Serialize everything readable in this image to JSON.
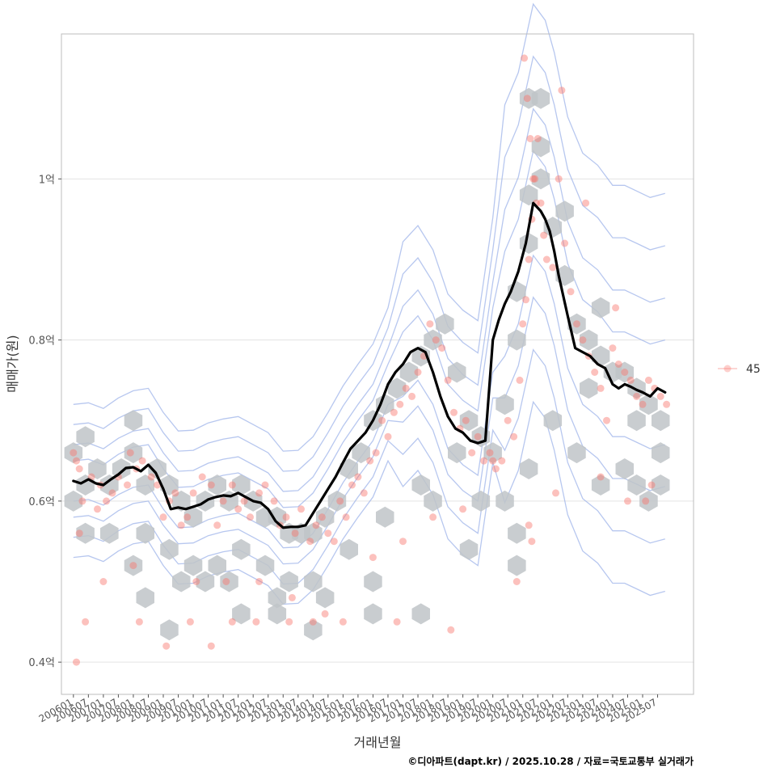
{
  "chart_data": {
    "type": "scatter",
    "xlabel": "거래년월",
    "ylabel": "매매가(원)",
    "y_ticks": [
      {
        "value": 0.4,
        "label": "0.4억"
      },
      {
        "value": 0.6,
        "label": "0.6억"
      },
      {
        "value": 0.8,
        "label": "0.8억"
      },
      {
        "value": 1.0,
        "label": "1억"
      }
    ],
    "ylim": [
      0.36,
      1.18
    ],
    "x_range": [
      2005.6,
      2026.7
    ],
    "x_ticks": [
      "200601",
      "200607",
      "200701",
      "200707",
      "200801",
      "200807",
      "200901",
      "200907",
      "201001",
      "201007",
      "201101",
      "201107",
      "201201",
      "201207",
      "201301",
      "201307",
      "201401",
      "201407",
      "201501",
      "201507",
      "201601",
      "201607",
      "201701",
      "201707",
      "201801",
      "201807",
      "201901",
      "201907",
      "202001",
      "202007",
      "202101",
      "202107",
      "202201",
      "202207",
      "202301",
      "202307",
      "202401",
      "202407",
      "202501",
      "202507"
    ],
    "legend": [
      {
        "label": "45",
        "color": "#f8766d"
      }
    ],
    "legend_position": "right",
    "trend_line": {
      "color": "#000000",
      "x": [
        2006.0,
        2006.25,
        2006.5,
        2006.75,
        2007.0,
        2007.25,
        2007.5,
        2007.75,
        2008.0,
        2008.25,
        2008.5,
        2008.75,
        2009.0,
        2009.25,
        2009.5,
        2009.75,
        2010.0,
        2010.25,
        2010.5,
        2010.75,
        2011.0,
        2011.25,
        2011.5,
        2011.75,
        2012.0,
        2012.25,
        2012.5,
        2012.75,
        2013.0,
        2013.25,
        2013.5,
        2013.75,
        2014.0,
        2014.25,
        2014.5,
        2014.75,
        2015.0,
        2015.25,
        2015.5,
        2015.75,
        2016.0,
        2016.25,
        2016.5,
        2016.75,
        2017.0,
        2017.25,
        2017.5,
        2017.75,
        2018.0,
        2018.25,
        2018.5,
        2018.75,
        2019.0,
        2019.25,
        2019.5,
        2019.75,
        2020.0,
        2020.2,
        2020.4,
        2020.6,
        2020.85,
        2021.1,
        2021.35,
        2021.6,
        2021.75,
        2021.9,
        2022.05,
        2022.2,
        2022.5,
        2022.75,
        2023.0,
        2023.25,
        2023.5,
        2023.75,
        2024.0,
        2024.2,
        2024.4,
        2024.6,
        2024.8,
        2025.0,
        2025.25,
        2025.5,
        2025.75
      ],
      "values": [
        0.625,
        0.622,
        0.627,
        0.622,
        0.62,
        0.627,
        0.633,
        0.641,
        0.642,
        0.637,
        0.645,
        0.635,
        0.615,
        0.59,
        0.592,
        0.59,
        0.593,
        0.596,
        0.602,
        0.605,
        0.607,
        0.606,
        0.61,
        0.605,
        0.6,
        0.598,
        0.59,
        0.575,
        0.567,
        0.568,
        0.568,
        0.57,
        0.585,
        0.6,
        0.615,
        0.63,
        0.648,
        0.665,
        0.675,
        0.685,
        0.7,
        0.72,
        0.745,
        0.76,
        0.77,
        0.785,
        0.79,
        0.785,
        0.76,
        0.73,
        0.705,
        0.69,
        0.685,
        0.675,
        0.672,
        0.675,
        0.8,
        0.825,
        0.845,
        0.86,
        0.885,
        0.92,
        0.97,
        0.96,
        0.95,
        0.935,
        0.91,
        0.88,
        0.83,
        0.79,
        0.785,
        0.78,
        0.77,
        0.765,
        0.745,
        0.74,
        0.745,
        0.742,
        0.738,
        0.735,
        0.73,
        0.74,
        0.735
      ]
    },
    "scatter_points": {
      "color": "#f8766d",
      "x": [
        2006.0,
        2006.1,
        2006.2,
        2006.3,
        2006.6,
        2006.8,
        2006.9,
        2007.1,
        2007.3,
        2007.5,
        2007.8,
        2007.9,
        2008.1,
        2008.3,
        2008.6,
        2008.8,
        2009.0,
        2009.2,
        2009.4,
        2009.6,
        2009.8,
        2010.0,
        2010.3,
        2010.6,
        2010.8,
        2011.0,
        2011.3,
        2011.5,
        2011.7,
        2011.9,
        2012.2,
        2012.4,
        2012.7,
        2012.9,
        2013.1,
        2013.4,
        2013.6,
        2013.9,
        2014.1,
        2014.3,
        2014.5,
        2014.7,
        2014.9,
        2015.1,
        2015.3,
        2015.5,
        2015.7,
        2015.9,
        2016.1,
        2016.3,
        2016.5,
        2016.7,
        2016.9,
        2017.1,
        2017.3,
        2017.5,
        2017.7,
        2017.9,
        2018.1,
        2018.3,
        2018.5,
        2018.7,
        2018.9,
        2019.1,
        2019.3,
        2019.5,
        2019.7,
        2019.9,
        2020.1,
        2020.3,
        2020.5,
        2020.7,
        2020.9,
        2021.0,
        2021.1,
        2021.2,
        2021.3,
        2021.4,
        2021.5,
        2021.6,
        2021.7,
        2021.8,
        2022.0,
        2022.2,
        2022.4,
        2022.6,
        2022.8,
        2023.0,
        2023.2,
        2023.4,
        2023.6,
        2023.8,
        2024.0,
        2024.2,
        2024.4,
        2024.6,
        2024.8,
        2025.0,
        2025.2,
        2025.4,
        2025.6,
        2025.8,
        2006.1,
        2006.4,
        2008.2,
        2009.1,
        2009.9,
        2010.6,
        2011.3,
        2012.1,
        2013.2,
        2014.0,
        2016.8,
        2018.6,
        2020.8,
        2021.2,
        2021.3,
        2022.1,
        2023.6,
        2024.5,
        2025.1,
        2006.2,
        2007.0,
        2008.0,
        2010.1,
        2011.1,
        2012.2,
        2013.3,
        2014.4,
        2015.0,
        2016.0,
        2017.0,
        2018.0,
        2019.0,
        2020.0,
        2021.05,
        2021.15,
        2021.25,
        2021.35,
        2021.45,
        2022.3,
        2023.1,
        2024.1,
        2025.3
      ],
      "values": [
        0.66,
        0.65,
        0.64,
        0.6,
        0.63,
        0.59,
        0.62,
        0.6,
        0.61,
        0.63,
        0.62,
        0.66,
        0.64,
        0.65,
        0.63,
        0.62,
        0.58,
        0.6,
        0.61,
        0.57,
        0.58,
        0.61,
        0.63,
        0.62,
        0.57,
        0.6,
        0.62,
        0.59,
        0.6,
        0.58,
        0.61,
        0.62,
        0.6,
        0.57,
        0.58,
        0.56,
        0.59,
        0.55,
        0.57,
        0.58,
        0.56,
        0.55,
        0.6,
        0.58,
        0.62,
        0.63,
        0.61,
        0.65,
        0.66,
        0.7,
        0.68,
        0.71,
        0.72,
        0.74,
        0.73,
        0.76,
        0.78,
        0.82,
        0.8,
        0.79,
        0.75,
        0.71,
        0.69,
        0.7,
        0.66,
        0.68,
        0.65,
        0.66,
        0.64,
        0.65,
        0.7,
        0.68,
        0.75,
        0.82,
        0.85,
        0.9,
        0.95,
        1.0,
        1.05,
        0.97,
        0.93,
        0.9,
        0.89,
        1.0,
        0.92,
        0.86,
        0.82,
        0.8,
        0.78,
        0.76,
        0.74,
        0.7,
        0.79,
        0.77,
        0.76,
        0.75,
        0.73,
        0.72,
        0.75,
        0.74,
        0.73,
        0.72,
        0.4,
        0.45,
        0.45,
        0.42,
        0.45,
        0.42,
        0.45,
        0.45,
        0.45,
        0.45,
        0.45,
        0.44,
        0.5,
        0.57,
        0.55,
        0.61,
        0.63,
        0.6,
        0.6,
        0.56,
        0.5,
        0.52,
        0.5,
        0.5,
        0.5,
        0.48,
        0.46,
        0.45,
        0.53,
        0.55,
        0.58,
        0.59,
        0.65,
        1.15,
        1.1,
        1.05,
        1.0,
        0.97,
        1.11,
        0.97,
        0.84,
        0.62
      ]
    },
    "hexbins": {
      "color": "#bfc4c8",
      "x": [
        2006.0,
        2006.4,
        2006.4,
        2006.8,
        2007.2,
        2007.6,
        2008.0,
        2008.0,
        2008.4,
        2008.8,
        2009.2,
        2009.6,
        2010.0,
        2010.4,
        2010.8,
        2011.2,
        2011.6,
        2012.0,
        2012.4,
        2012.8,
        2013.2,
        2013.6,
        2014.0,
        2014.4,
        2014.8,
        2015.2,
        2015.6,
        2016.0,
        2016.4,
        2016.8,
        2017.2,
        2017.6,
        2018.0,
        2018.4,
        2018.8,
        2019.2,
        2019.6,
        2020.0,
        2020.4,
        2020.8,
        2020.8,
        2021.2,
        2021.2,
        2021.6,
        2022.0,
        2022.4,
        2022.8,
        2023.2,
        2023.6,
        2024.0,
        2024.4,
        2024.8,
        2025.2,
        2025.6,
        2006.0,
        2007.2,
        2008.4,
        2009.2,
        2010.0,
        2010.8,
        2011.6,
        2012.4,
        2013.2,
        2014.0,
        2015.2,
        2016.4,
        2017.6,
        2018.8,
        2020.4,
        2021.6,
        2022.4,
        2023.6,
        2024.8,
        2025.6,
        2006.4,
        2008.0,
        2009.6,
        2011.2,
        2012.8,
        2014.4,
        2016.0,
        2018.0,
        2019.6,
        2020.8,
        2021.2,
        2022.0,
        2023.2,
        2024.4,
        2025.2,
        2008.4,
        2009.2,
        2010.4,
        2011.6,
        2012.8,
        2014.0,
        2016.0,
        2017.6,
        2019.2,
        2020.8,
        2021.2,
        2021.6,
        2022.8,
        2023.6,
        2024.8,
        2025.6
      ],
      "values": [
        0.66,
        0.68,
        0.62,
        0.64,
        0.62,
        0.64,
        0.66,
        0.7,
        0.62,
        0.64,
        0.62,
        0.6,
        0.58,
        0.6,
        0.62,
        0.6,
        0.62,
        0.6,
        0.58,
        0.58,
        0.56,
        0.56,
        0.56,
        0.58,
        0.6,
        0.64,
        0.66,
        0.7,
        0.72,
        0.74,
        0.76,
        0.78,
        0.8,
        0.82,
        0.76,
        0.7,
        0.68,
        0.66,
        0.72,
        0.8,
        0.86,
        0.92,
        0.98,
        1.0,
        0.94,
        0.88,
        0.82,
        0.8,
        0.78,
        0.76,
        0.76,
        0.74,
        0.72,
        0.7,
        0.6,
        0.56,
        0.56,
        0.54,
        0.52,
        0.52,
        0.54,
        0.52,
        0.5,
        0.5,
        0.54,
        0.58,
        0.62,
        0.66,
        0.6,
        1.04,
        0.96,
        0.84,
        0.7,
        0.66,
        0.56,
        0.52,
        0.5,
        0.5,
        0.48,
        0.48,
        0.5,
        0.6,
        0.6,
        0.56,
        0.64,
        0.7,
        0.74,
        0.64,
        0.6,
        0.48,
        0.44,
        0.5,
        0.46,
        0.46,
        0.44,
        0.46,
        0.46,
        0.54,
        0.52,
        1.1,
        1.1,
        0.66,
        0.62,
        0.62,
        0.62
      ]
    },
    "density_contours": {
      "color": "#9fb4ea"
    },
    "caption": "©디아파트(dapt.kr) / 2025.10.28 / 자료=국토교통부 실거래가"
  }
}
